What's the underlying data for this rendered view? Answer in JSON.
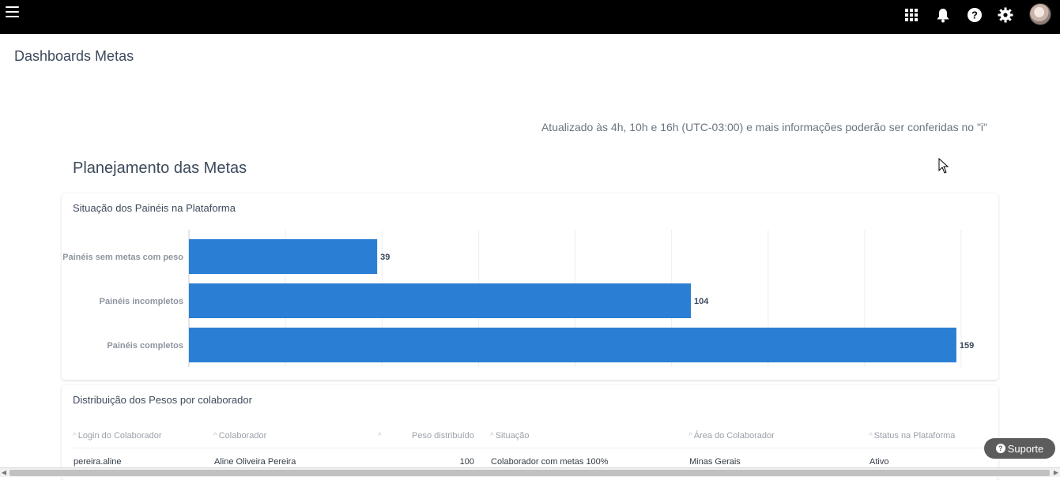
{
  "topbar": {
    "icons": [
      "menu-icon",
      "apps-grid-icon",
      "bell-icon",
      "help-icon",
      "gear-icon",
      "avatar"
    ]
  },
  "header": {
    "title": "Dashboards Metas"
  },
  "notice": "Atualizado às 4h, 10h e 16h (UTC-03:00) e mais informações poderão ser conferidas no \"i\"",
  "section": {
    "title": "Planejamento das Metas"
  },
  "panels_card": {
    "title": "Situação dos Painéis na Plataforma"
  },
  "chart_data": {
    "type": "bar",
    "orientation": "horizontal",
    "categories": [
      "Painéis sem metas com peso",
      "Painéis incompletos",
      "Painéis completos"
    ],
    "values": [
      39,
      104,
      159
    ],
    "xlim": [
      0,
      160
    ],
    "grid": true,
    "bar_color": "#2a7fd4"
  },
  "weights_card": {
    "title": "Distribuição dos Pesos por colaborador",
    "columns": [
      "Login do Colaborador",
      "Colaborador",
      "",
      "Peso distribuído",
      "Situação",
      "Área do Colaborador",
      "Status na Plataforma"
    ],
    "rows": [
      {
        "login": "pereira.aline",
        "name": "Aline Oliveira Pereira",
        "weight": "100",
        "status": "Colaborador com metas 100%",
        "area": "Minas Gerais",
        "platform_status": "Ativo"
      }
    ]
  },
  "support_button": {
    "label": "Suporte"
  },
  "colors": {
    "topbar": "#000000",
    "accent": "#2a7fd4",
    "title_text": "#3d4a5c"
  }
}
